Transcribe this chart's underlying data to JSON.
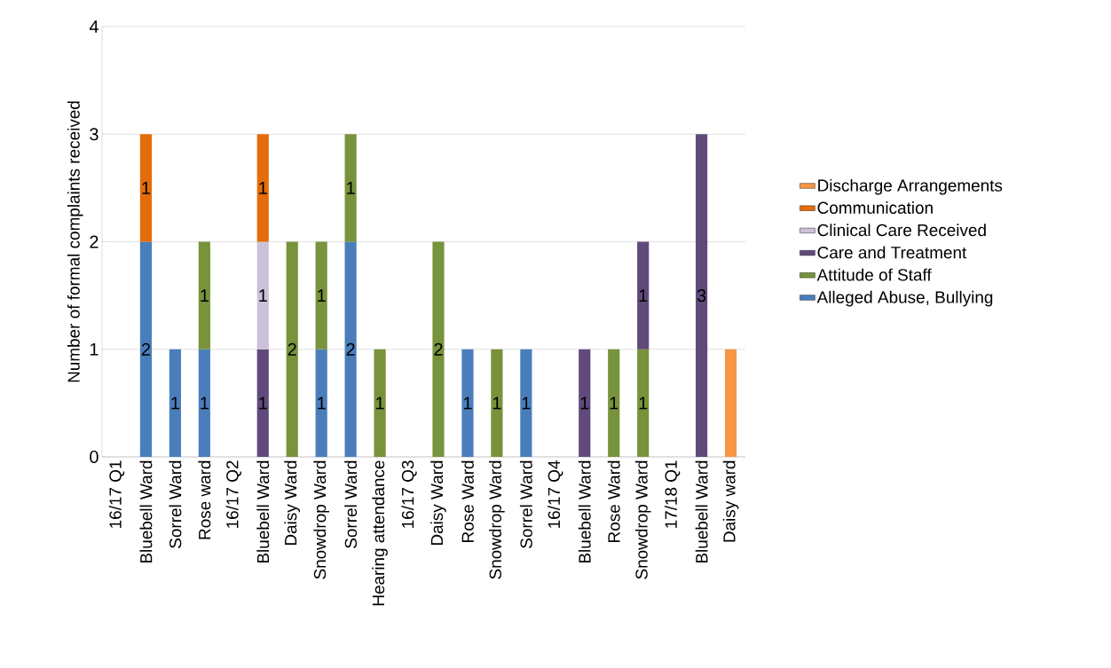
{
  "chart_data": {
    "type": "bar",
    "stacked": true,
    "ylabel": "Number of formal complaints received",
    "categories": [
      "16/17 Q1",
      "Bluebell Ward",
      "Sorrel Ward",
      "Rose ward",
      "16/17 Q2",
      "Bluebell Ward",
      "Daisy Ward",
      "Snowdrop Ward",
      "Sorrel Ward",
      "Hearing attendance",
      "16/17 Q3",
      "Daisy Ward",
      "Rose Ward",
      "Snowdrop Ward",
      "Sorrel Ward",
      "16/17 Q4",
      "Bluebell Ward",
      "Rose Ward",
      "Snowdrop Ward",
      "17/18 Q1",
      "Bluebell Ward",
      "Daisy ward"
    ],
    "series": [
      {
        "name": "Alleged Abuse, Bullying",
        "color": "#4a7ebb",
        "values": [
          null,
          2,
          1,
          1,
          null,
          null,
          null,
          1,
          2,
          null,
          null,
          null,
          1,
          null,
          1,
          null,
          null,
          null,
          null,
          null,
          null,
          null
        ],
        "value_labels": [
          null,
          "2",
          "1",
          "1",
          null,
          null,
          null,
          "1",
          "2",
          null,
          null,
          null,
          "1",
          null,
          "1",
          null,
          null,
          null,
          null,
          null,
          null,
          null
        ]
      },
      {
        "name": "Attitude of Staff",
        "color": "#77933c",
        "values": [
          null,
          null,
          null,
          1,
          null,
          null,
          2,
          1,
          1,
          1,
          null,
          2,
          null,
          1,
          null,
          null,
          null,
          1,
          1,
          null,
          null,
          null
        ],
        "value_labels": [
          null,
          null,
          null,
          "1",
          null,
          null,
          "2",
          "1",
          "1",
          "1",
          null,
          "2",
          null,
          "1",
          null,
          null,
          null,
          "1",
          "1",
          null,
          null,
          null
        ]
      },
      {
        "name": "Care and Treatment",
        "color": "#604a7b",
        "values": [
          null,
          null,
          null,
          null,
          null,
          1,
          null,
          null,
          null,
          null,
          null,
          null,
          null,
          null,
          null,
          null,
          1,
          null,
          1,
          null,
          3,
          null
        ],
        "value_labels": [
          null,
          null,
          null,
          null,
          null,
          "1",
          null,
          null,
          null,
          null,
          null,
          null,
          null,
          null,
          null,
          null,
          "1",
          null,
          "1",
          null,
          "3",
          null
        ]
      },
      {
        "name": "Clinical Care Received",
        "color": "#ccc1da",
        "values": [
          null,
          null,
          null,
          null,
          null,
          1,
          null,
          null,
          null,
          null,
          null,
          null,
          null,
          null,
          null,
          null,
          null,
          null,
          null,
          null,
          null,
          null
        ],
        "value_labels": [
          null,
          null,
          null,
          null,
          null,
          "1",
          null,
          null,
          null,
          null,
          null,
          null,
          null,
          null,
          null,
          null,
          null,
          null,
          null,
          null,
          null,
          null
        ]
      },
      {
        "name": "Communication",
        "color": "#e46c0a",
        "values": [
          null,
          1,
          null,
          null,
          null,
          1,
          null,
          null,
          null,
          null,
          null,
          null,
          null,
          null,
          null,
          null,
          null,
          null,
          null,
          null,
          null,
          null
        ],
        "value_labels": [
          null,
          "1",
          null,
          null,
          null,
          "1",
          null,
          null,
          null,
          null,
          null,
          null,
          null,
          null,
          null,
          null,
          null,
          null,
          null,
          null,
          null,
          null
        ]
      },
      {
        "name": "Discharge Arrangements",
        "color": "#f79646",
        "values": [
          null,
          null,
          null,
          null,
          null,
          null,
          null,
          null,
          null,
          null,
          null,
          null,
          null,
          null,
          null,
          null,
          null,
          null,
          null,
          null,
          null,
          1
        ],
        "value_labels": [
          null,
          null,
          null,
          null,
          null,
          null,
          null,
          null,
          null,
          null,
          null,
          null,
          null,
          null,
          null,
          null,
          null,
          null,
          null,
          null,
          null,
          null
        ]
      }
    ],
    "ylim": [
      0,
      4
    ],
    "yticks": [
      0,
      1,
      2,
      3,
      4
    ],
    "grid": "y",
    "legend": "right"
  }
}
